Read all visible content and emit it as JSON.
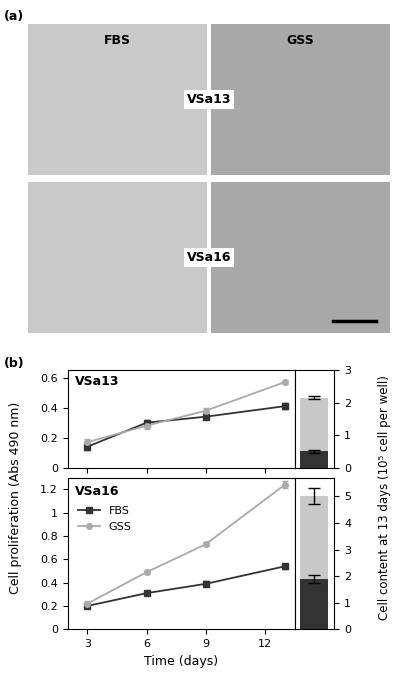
{
  "panel_a": {
    "label": "(a)",
    "columns": [
      "FBS",
      "GSS"
    ],
    "rows": [
      "VSa13",
      "VSa16"
    ]
  },
  "panel_b": {
    "label": "(b)",
    "ylabel": "Cell proliferation (Abs 490 nm)",
    "y2label": "Cell content at 13 days (10⁵ cell per well)"
  },
  "chart_data": [
    {
      "type": "line",
      "title": "VSa13",
      "x": [
        3,
        6,
        9,
        13
      ],
      "series": [
        {
          "name": "FBS",
          "color": "#333333",
          "marker": "square",
          "values": [
            0.14,
            0.3,
            0.34,
            0.41
          ],
          "errors": [
            0.02,
            0.02,
            0.015,
            0.02
          ]
        },
        {
          "name": "GSS",
          "color": "#aaaaaa",
          "marker": "circle",
          "values": [
            0.17,
            0.28,
            0.38,
            0.57
          ],
          "errors": [
            0.02,
            0.02,
            0.015,
            0.015
          ]
        }
      ],
      "xlim": [
        2,
        13.5
      ],
      "xticks": [
        3,
        6,
        9,
        12
      ],
      "ylim": [
        0,
        0.65
      ],
      "yticks": [
        0,
        0.2,
        0.4,
        0.6
      ],
      "tick_labels": "y"
    },
    {
      "type": "bar",
      "categories": [
        null
      ],
      "series": [
        {
          "name": "GSS",
          "color": "#c8c8c8",
          "values": [
            2.15
          ],
          "errors": [
            0.05
          ]
        },
        {
          "name": "FBS",
          "color": "#333333",
          "values": [
            0.5
          ],
          "errors": [
            0.05
          ]
        }
      ],
      "ylim": [
        0,
        3
      ],
      "yticks": [
        0,
        1,
        2,
        3
      ],
      "tick_labels": "y"
    },
    {
      "type": "line",
      "title": "VSa16",
      "xlabel": "Time (days)",
      "x": [
        3,
        6,
        9,
        13
      ],
      "series": [
        {
          "name": "FBS",
          "color": "#333333",
          "marker": "square",
          "values": [
            0.2,
            0.31,
            0.39,
            0.54
          ],
          "errors": [
            0.02,
            0.02,
            0.02,
            0.02
          ]
        },
        {
          "name": "GSS",
          "color": "#aaaaaa",
          "marker": "circle",
          "values": [
            0.22,
            0.49,
            0.73,
            1.24
          ],
          "errors": [
            0.02,
            0.015,
            0.015,
            0.03
          ]
        }
      ],
      "xlim": [
        2,
        13.5
      ],
      "xticks": [
        3,
        6,
        9,
        12
      ],
      "ylim": [
        0,
        1.3
      ],
      "yticks": [
        0,
        0.2,
        0.4,
        0.6,
        0.8,
        1,
        1.2
      ],
      "legend": "upper left"
    },
    {
      "type": "bar",
      "categories": [
        null
      ],
      "series": [
        {
          "name": "GSS",
          "color": "#c8c8c8",
          "values": [
            5.0
          ],
          "errors": [
            0.3
          ]
        },
        {
          "name": "FBS",
          "color": "#333333",
          "values": [
            1.9
          ],
          "errors": [
            0.15
          ]
        }
      ],
      "ylim": [
        0,
        5.7
      ],
      "yticks": [
        0,
        1,
        2,
        3,
        4,
        5
      ],
      "tick_labels": "y"
    }
  ]
}
